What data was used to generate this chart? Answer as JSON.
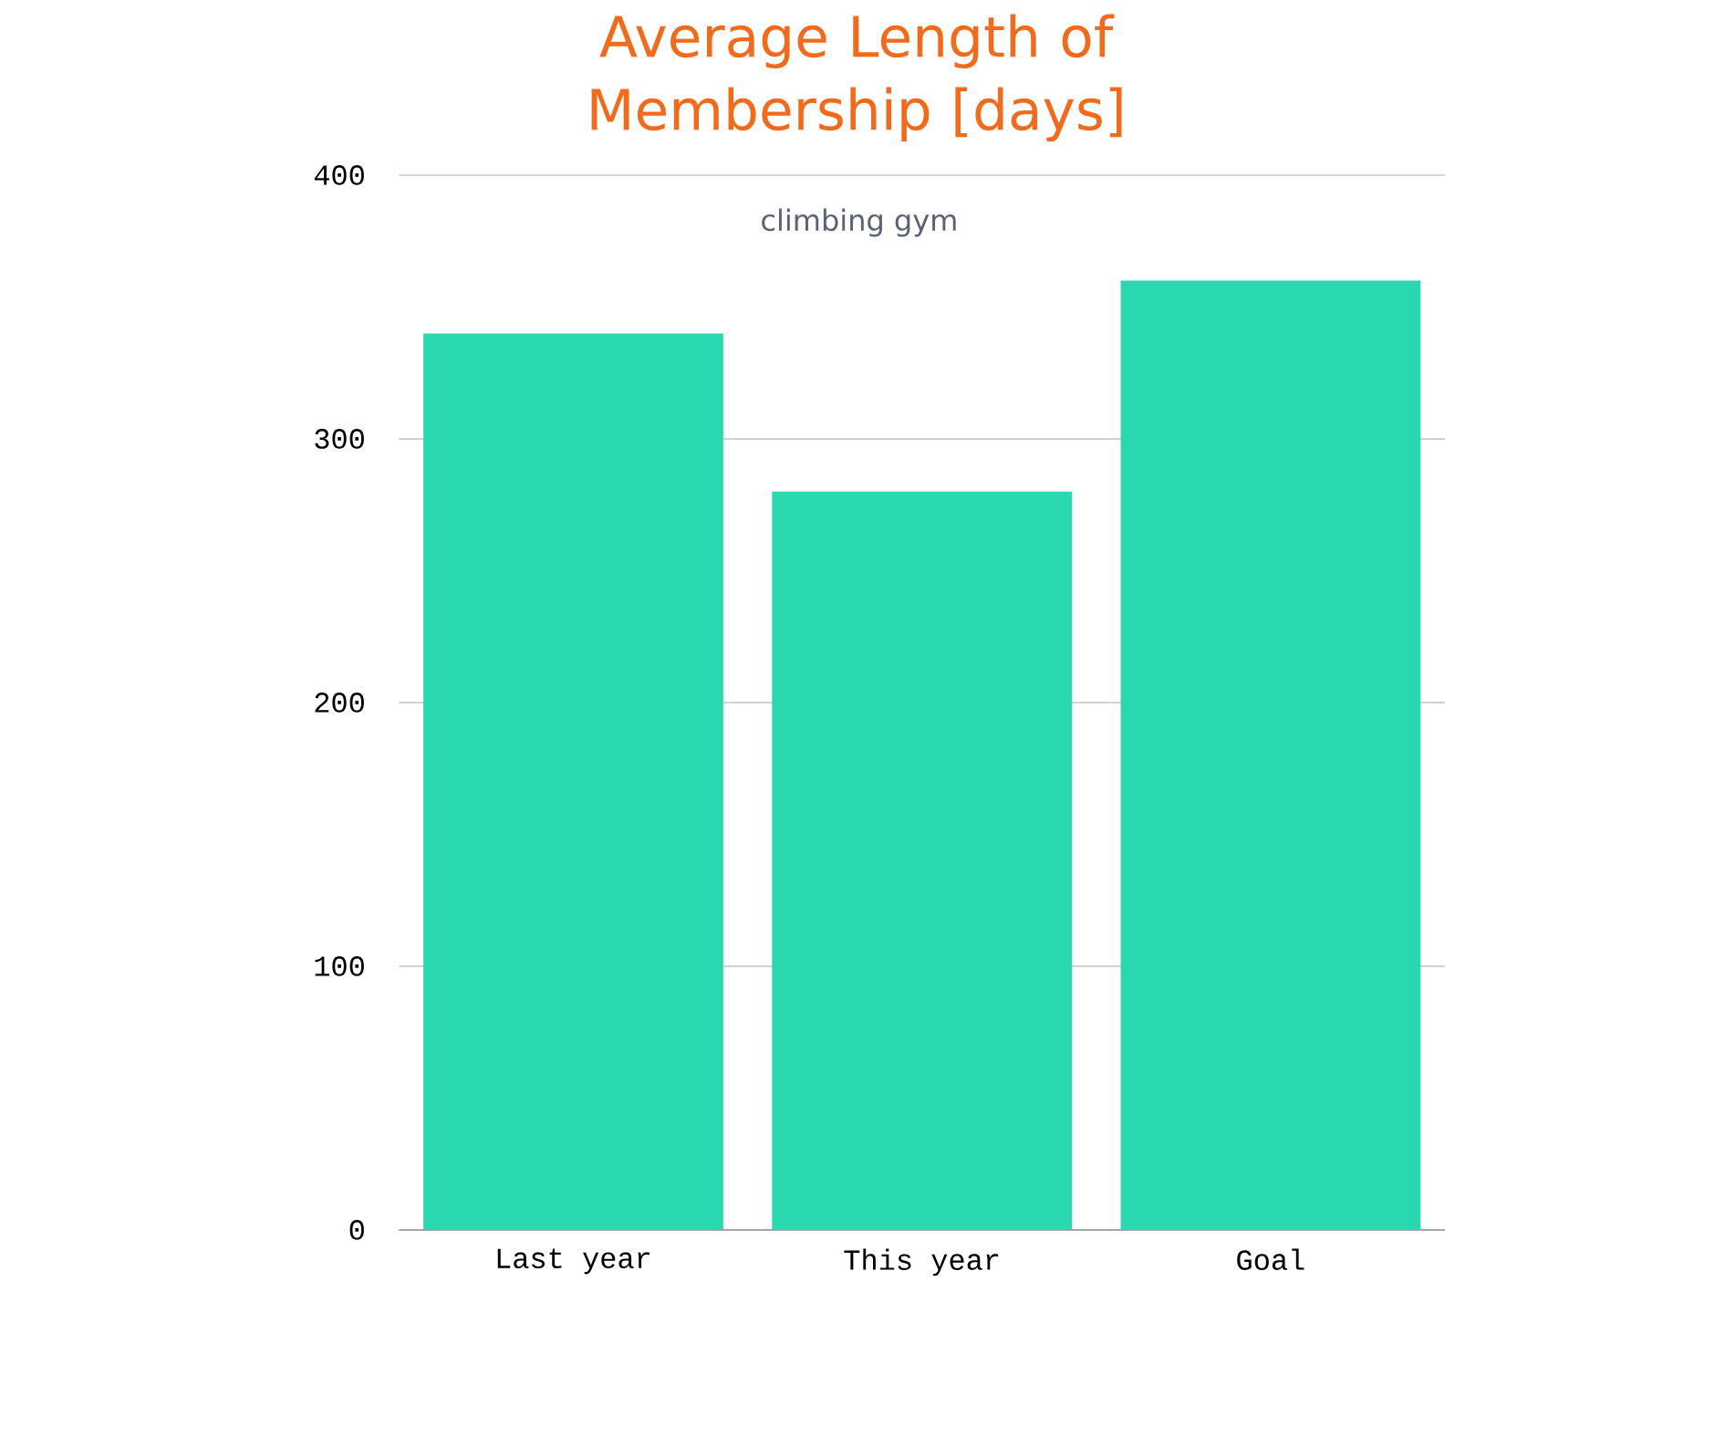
{
  "chart_data": {
    "type": "bar",
    "title": "Average Length of Membership [days]",
    "subtitle": "climbing gym",
    "categories": [
      "Last year",
      "This year",
      "Goal"
    ],
    "values": [
      340,
      280,
      360
    ],
    "color": "#2ad8b0",
    "ylim": [
      0,
      400
    ],
    "yticks": [
      0,
      100,
      200,
      300,
      400
    ],
    "grid": "y"
  }
}
